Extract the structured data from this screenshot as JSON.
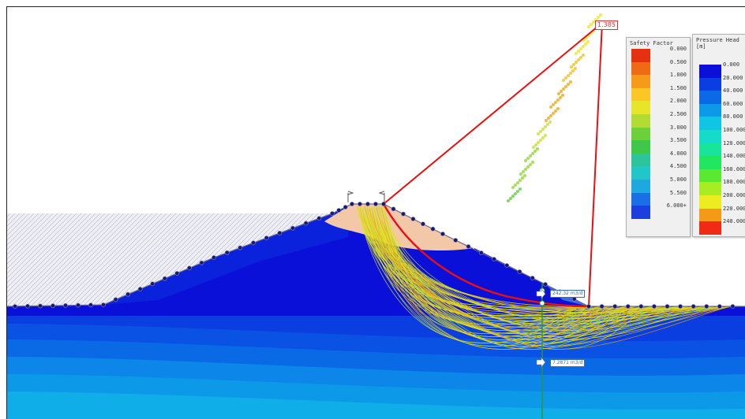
{
  "safety_factor_box": "1.385",
  "flux_labels": [
    "242.32 m3/d",
    "7.2871 m3/d"
  ],
  "safety_legend": {
    "title": "Safety Factor",
    "entries": [
      {
        "label": "0.000",
        "color": "#e53012"
      },
      {
        "label": "0.500",
        "color": "#f06a14"
      },
      {
        "label": "1.000",
        "color": "#f79a1a"
      },
      {
        "label": "1.500",
        "color": "#fcc624"
      },
      {
        "label": "2.000",
        "color": "#e6e52a"
      },
      {
        "label": "2.500",
        "color": "#b3dc32"
      },
      {
        "label": "3.000",
        "color": "#6cd03a"
      },
      {
        "label": "3.500",
        "color": "#3ec84a"
      },
      {
        "label": "4.000",
        "color": "#2cc49a"
      },
      {
        "label": "4.500",
        "color": "#22c6c8"
      },
      {
        "label": "5.000",
        "color": "#1ea8e0"
      },
      {
        "label": "5.500",
        "color": "#1a6ee6"
      },
      {
        "label": "6.000+",
        "color": "#1c3fe0"
      }
    ]
  },
  "pressure_legend": {
    "title": "Pressure Head\n[m]",
    "entries": [
      {
        "label": "0.000",
        "color": "#0a10d8"
      },
      {
        "label": "20.000",
        "color": "#0a3ee0"
      },
      {
        "label": "40.000",
        "color": "#0a6ae6"
      },
      {
        "label": "60.000",
        "color": "#0c9ae8"
      },
      {
        "label": "80.000",
        "color": "#10c4e4"
      },
      {
        "label": "100.000",
        "color": "#14dcc8"
      },
      {
        "label": "120.000",
        "color": "#18e49a"
      },
      {
        "label": "140.000",
        "color": "#20e660"
      },
      {
        "label": "160.000",
        "color": "#5ae830"
      },
      {
        "label": "180.000",
        "color": "#a8ec24"
      },
      {
        "label": "200.000",
        "color": "#ecec20"
      },
      {
        "label": "220.000",
        "color": "#f49a18"
      },
      {
        "label": "240.000",
        "color": "#f02a14"
      }
    ]
  },
  "colors": {
    "background": "#ffffff",
    "left_hatch": "#c8c8d8",
    "embankment_blue": "#0a10d8",
    "clay_core": "#f2c8a8",
    "critical_surface": "#e81010",
    "flow_line": "#2a9a2a"
  }
}
